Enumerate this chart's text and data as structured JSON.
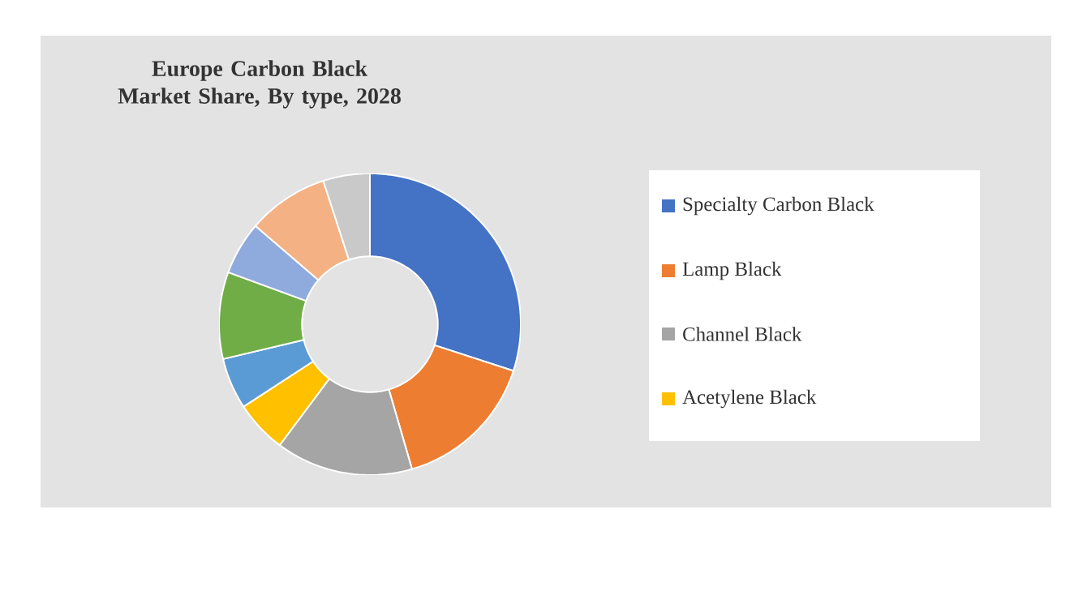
{
  "chart_data": {
    "type": "donut",
    "title": "Europe Carbon Black Market Share, By type, 2028",
    "categories": [
      "Specialty Carbon Black",
      "Lamp Black",
      "Channel Black",
      "Acetylene Black",
      null,
      null,
      null,
      null,
      null
    ],
    "values": [
      30.0,
      15.5,
      14.7,
      5.6,
      5.5,
      9.3,
      5.7,
      8.7,
      5.0
    ],
    "colors": [
      "#4472c4",
      "#ed7d31",
      "#a5a5a5",
      "#ffc000",
      "#5b9bd5",
      "#70ad47",
      "#8faadc",
      "#f4b183",
      "#c9c9c9"
    ],
    "legend": "right"
  }
}
